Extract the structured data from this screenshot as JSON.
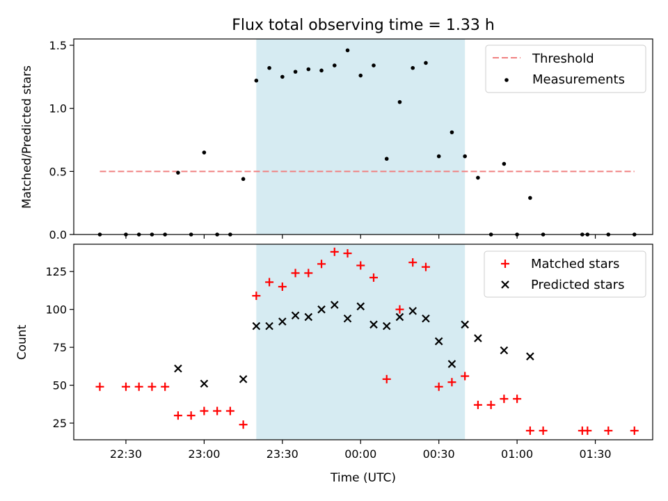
{
  "figure": {
    "title": "Flux total observing time = 1.33 h",
    "xlabel": "Time (UTC)",
    "x_ticks": [
      "22:30",
      "23:00",
      "23:30",
      "00:00",
      "00:30",
      "01:00",
      "01:30"
    ],
    "span_color": "#add8e6"
  },
  "chart_data": [
    {
      "type": "scatter",
      "ylabel": "Matched/Predicted stars",
      "y_ticks": [
        "0.0",
        "0.5",
        "1.0",
        "1.5"
      ],
      "ylim": [
        0,
        1.55
      ],
      "shaded_span": [
        "23:20",
        "00:40"
      ],
      "threshold": {
        "name": "Threshold",
        "value": 0.5,
        "x_range": [
          "22:20",
          "01:45"
        ],
        "color": "#f08080"
      },
      "series": [
        {
          "name": "Measurements",
          "color": "#000000",
          "points": [
            [
              "22:20",
              0.0
            ],
            [
              "22:30",
              0.0
            ],
            [
              "22:35",
              0.0
            ],
            [
              "22:40",
              0.0
            ],
            [
              "22:45",
              0.0
            ],
            [
              "22:50",
              0.49
            ],
            [
              "22:55",
              0.0
            ],
            [
              "23:00",
              0.65
            ],
            [
              "23:05",
              0.0
            ],
            [
              "23:10",
              0.0
            ],
            [
              "23:15",
              0.44
            ],
            [
              "23:20",
              1.22
            ],
            [
              "23:25",
              1.32
            ],
            [
              "23:30",
              1.25
            ],
            [
              "23:35",
              1.29
            ],
            [
              "23:40",
              1.31
            ],
            [
              "23:45",
              1.3
            ],
            [
              "23:50",
              1.34
            ],
            [
              "23:55",
              1.46
            ],
            [
              "00:00",
              1.26
            ],
            [
              "00:05",
              1.34
            ],
            [
              "00:10",
              0.6
            ],
            [
              "00:15",
              1.05
            ],
            [
              "00:20",
              1.32
            ],
            [
              "00:25",
              1.36
            ],
            [
              "00:30",
              0.62
            ],
            [
              "00:35",
              0.81
            ],
            [
              "00:40",
              0.62
            ],
            [
              "00:45",
              0.45
            ],
            [
              "00:50",
              0.0
            ],
            [
              "00:55",
              0.56
            ],
            [
              "01:00",
              0.0
            ],
            [
              "01:05",
              0.29
            ],
            [
              "01:10",
              0.0
            ],
            [
              "01:25",
              0.0
            ],
            [
              "01:27",
              0.0
            ],
            [
              "01:35",
              0.0
            ],
            [
              "01:45",
              0.0
            ]
          ]
        }
      ]
    },
    {
      "type": "scatter",
      "ylabel": "Count",
      "y_ticks": [
        "25",
        "50",
        "75",
        "100",
        "125"
      ],
      "ylim": [
        14,
        143
      ],
      "shaded_span": [
        "23:20",
        "00:40"
      ],
      "series": [
        {
          "name": "Matched stars",
          "color": "#ff0000",
          "marker": "plus",
          "points": [
            [
              "22:20",
              49
            ],
            [
              "22:30",
              49
            ],
            [
              "22:35",
              49
            ],
            [
              "22:40",
              49
            ],
            [
              "22:45",
              49
            ],
            [
              "22:50",
              30
            ],
            [
              "22:55",
              30
            ],
            [
              "23:00",
              33
            ],
            [
              "23:05",
              33
            ],
            [
              "23:10",
              33
            ],
            [
              "23:15",
              24
            ],
            [
              "23:20",
              109
            ],
            [
              "23:25",
              118
            ],
            [
              "23:30",
              115
            ],
            [
              "23:35",
              124
            ],
            [
              "23:40",
              124
            ],
            [
              "23:45",
              130
            ],
            [
              "23:50",
              138
            ],
            [
              "23:55",
              137
            ],
            [
              "00:00",
              129
            ],
            [
              "00:05",
              121
            ],
            [
              "00:10",
              54
            ],
            [
              "00:15",
              100
            ],
            [
              "00:20",
              131
            ],
            [
              "00:25",
              128
            ],
            [
              "00:30",
              49
            ],
            [
              "00:35",
              52
            ],
            [
              "00:40",
              56
            ],
            [
              "00:45",
              37
            ],
            [
              "00:50",
              37
            ],
            [
              "00:55",
              41
            ],
            [
              "01:00",
              41
            ],
            [
              "01:05",
              20
            ],
            [
              "01:10",
              20
            ],
            [
              "01:25",
              20
            ],
            [
              "01:27",
              20
            ],
            [
              "01:35",
              20
            ],
            [
              "01:45",
              20
            ]
          ]
        },
        {
          "name": "Predicted stars",
          "color": "#000000",
          "marker": "x",
          "points": [
            [
              "22:50",
              61
            ],
            [
              "23:00",
              51
            ],
            [
              "23:15",
              54
            ],
            [
              "23:20",
              89
            ],
            [
              "23:25",
              89
            ],
            [
              "23:30",
              92
            ],
            [
              "23:35",
              96
            ],
            [
              "23:40",
              95
            ],
            [
              "23:45",
              100
            ],
            [
              "23:50",
              103
            ],
            [
              "23:55",
              94
            ],
            [
              "00:00",
              102
            ],
            [
              "00:05",
              90
            ],
            [
              "00:10",
              89
            ],
            [
              "00:15",
              95
            ],
            [
              "00:20",
              99
            ],
            [
              "00:25",
              94
            ],
            [
              "00:30",
              79
            ],
            [
              "00:35",
              64
            ],
            [
              "00:40",
              90
            ],
            [
              "00:45",
              81
            ],
            [
              "00:55",
              73
            ],
            [
              "01:05",
              69
            ]
          ]
        }
      ]
    }
  ]
}
